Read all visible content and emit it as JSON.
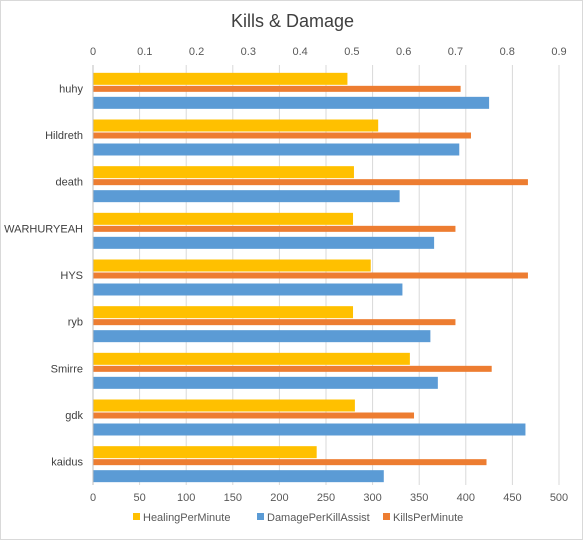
{
  "chart_data": {
    "type": "bar",
    "orientation": "horizontal",
    "title": "Kills & Damage",
    "categories": [
      "huhy",
      "Hildreth",
      "death",
      "WARHURYEAH",
      "HYS",
      "ryb",
      "Smirre",
      "gdk",
      "kaidus"
    ],
    "series": [
      {
        "name": "HealingPerMinute",
        "axis": "bottom",
        "color": "#FFC000",
        "values": [
          273,
          306,
          280,
          279,
          298,
          279,
          340,
          281,
          240
        ]
      },
      {
        "name": "KillsPerMinute",
        "axis": "top",
        "color": "#ED7D31",
        "values": [
          0.71,
          0.73,
          0.84,
          0.7,
          0.84,
          0.7,
          0.77,
          0.62,
          0.76
        ]
      },
      {
        "name": "DamagePerKillAssist",
        "axis": "bottom",
        "color": "#5B9BD5",
        "values": [
          425,
          393,
          329,
          366,
          332,
          362,
          370,
          464,
          312
        ]
      }
    ],
    "x_bottom": {
      "min": 0,
      "max": 500,
      "ticks": [
        "0",
        "50",
        "100",
        "150",
        "200",
        "250",
        "300",
        "350",
        "400",
        "450",
        "500"
      ]
    },
    "x_top": {
      "min": 0,
      "max": 0.9,
      "ticks": [
        "0",
        "0.1",
        "0.2",
        "0.3",
        "0.4",
        "0.5",
        "0.6",
        "0.7",
        "0.8",
        "0.9"
      ]
    },
    "legend": {
      "position": "bottom",
      "order": [
        "HealingPerMinute",
        "DamagePerKillAssist",
        "KillsPerMinute"
      ]
    },
    "grid": true
  }
}
